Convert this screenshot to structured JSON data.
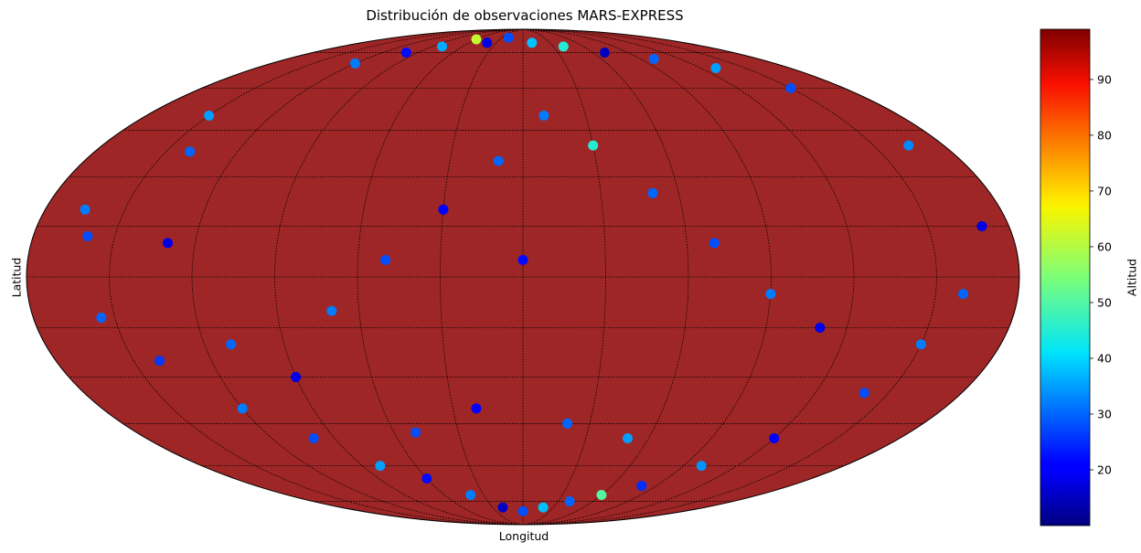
{
  "chart_data": {
    "type": "scatter",
    "projection": "mollweide",
    "title": "Distribución de observaciones MARS-EXPRESS",
    "xlabel": "Longitud",
    "ylabel": "Latitud",
    "colorbar": {
      "label": "Altitud",
      "colormap": "jet",
      "range": [
        10,
        99
      ],
      "ticks": [
        20,
        30,
        40,
        50,
        60,
        70,
        80,
        90
      ]
    },
    "grid": true,
    "background_color": "#9e2626",
    "meridians_deg": [
      -150,
      -120,
      -90,
      -60,
      -30,
      0,
      30,
      60,
      90,
      120,
      150
    ],
    "parallels_deg": [
      -75,
      -60,
      -45,
      -30,
      -15,
      0,
      15,
      30,
      45,
      60,
      75
    ],
    "points": [
      {
        "lon": -165,
        "lat": 20,
        "alt": 32
      },
      {
        "lon": -160,
        "lat": 12,
        "alt": 28
      },
      {
        "lon": -130,
        "lat": 10,
        "alt": 18
      },
      {
        "lon": -150,
        "lat": 50,
        "alt": 35
      },
      {
        "lon": -140,
        "lat": 38,
        "alt": 30
      },
      {
        "lon": -120,
        "lat": 70,
        "alt": 32
      },
      {
        "lon": -100,
        "lat": 75,
        "alt": 22
      },
      {
        "lon": -80,
        "lat": 78,
        "alt": 36
      },
      {
        "lon": -60,
        "lat": 82,
        "alt": 62
      },
      {
        "lon": -40,
        "lat": 80,
        "alt": 18
      },
      {
        "lon": -20,
        "lat": 83,
        "alt": 28
      },
      {
        "lon": 10,
        "lat": 80,
        "alt": 38
      },
      {
        "lon": 40,
        "lat": 78,
        "alt": 45
      },
      {
        "lon": 70,
        "lat": 75,
        "alt": 15
      },
      {
        "lon": 100,
        "lat": 72,
        "alt": 30
      },
      {
        "lon": 130,
        "lat": 68,
        "alt": 35
      },
      {
        "lon": 150,
        "lat": 60,
        "alt": 28
      },
      {
        "lon": 165,
        "lat": 40,
        "alt": 33
      },
      {
        "lon": 170,
        "lat": 15,
        "alt": 18
      },
      {
        "lon": 160,
        "lat": -5,
        "alt": 30
      },
      {
        "lon": 150,
        "lat": -20,
        "alt": 32
      },
      {
        "lon": 140,
        "lat": -35,
        "alt": 28
      },
      {
        "lon": 120,
        "lat": -50,
        "alt": 20
      },
      {
        "lon": 100,
        "lat": -60,
        "alt": 34
      },
      {
        "lon": 80,
        "lat": -68,
        "alt": 25
      },
      {
        "lon": 60,
        "lat": -72,
        "alt": 50
      },
      {
        "lon": 40,
        "lat": -75,
        "alt": 30
      },
      {
        "lon": 20,
        "lat": -78,
        "alt": 38
      },
      {
        "lon": 0,
        "lat": -80,
        "alt": 28
      },
      {
        "lon": -20,
        "lat": -78,
        "alt": 15
      },
      {
        "lon": -40,
        "lat": -72,
        "alt": 32
      },
      {
        "lon": -60,
        "lat": -65,
        "alt": 22
      },
      {
        "lon": -80,
        "lat": -60,
        "alt": 35
      },
      {
        "lon": -100,
        "lat": -50,
        "alt": 28
      },
      {
        "lon": -120,
        "lat": -40,
        "alt": 32
      },
      {
        "lon": -140,
        "lat": -25,
        "alt": 26
      },
      {
        "lon": -155,
        "lat": -12,
        "alt": 30
      },
      {
        "lon": -110,
        "lat": -20,
        "alt": 30
      },
      {
        "lon": -90,
        "lat": -30,
        "alt": 18
      },
      {
        "lon": -70,
        "lat": -10,
        "alt": 32
      },
      {
        "lon": -50,
        "lat": 5,
        "alt": 28
      },
      {
        "lon": -30,
        "lat": 20,
        "alt": 20
      },
      {
        "lon": -10,
        "lat": 35,
        "alt": 30
      },
      {
        "lon": 10,
        "lat": 50,
        "alt": 32
      },
      {
        "lon": 30,
        "lat": 40,
        "alt": 45
      },
      {
        "lon": 50,
        "lat": 25,
        "alt": 30
      },
      {
        "lon": 70,
        "lat": 10,
        "alt": 28
      },
      {
        "lon": 90,
        "lat": -5,
        "alt": 32
      },
      {
        "lon": 110,
        "lat": -15,
        "alt": 18
      },
      {
        "lon": -20,
        "lat": -40,
        "alt": 20
      },
      {
        "lon": 20,
        "lat": -45,
        "alt": 30
      },
      {
        "lon": 50,
        "lat": -50,
        "alt": 35
      },
      {
        "lon": -50,
        "lat": -48,
        "alt": 28
      },
      {
        "lon": 0,
        "lat": 5,
        "alt": 22
      }
    ]
  }
}
